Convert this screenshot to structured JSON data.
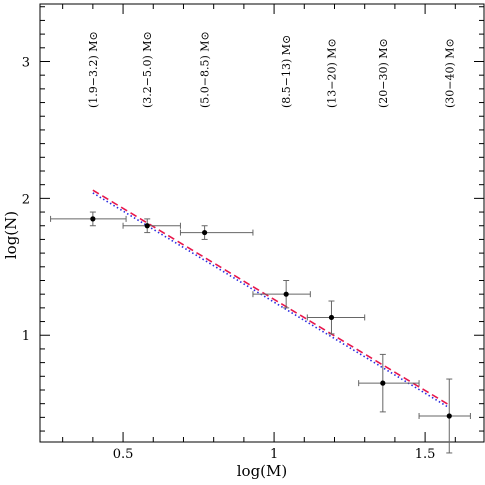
{
  "chart_data": {
    "type": "scatter",
    "xlabel": "log(M)",
    "ylabel": "log(N)",
    "xlim": [
      0.225,
      1.695
    ],
    "ylim": [
      0.22,
      3.42
    ],
    "x_ticks": [
      0.5,
      1,
      1.5
    ],
    "x_tick_labels": [
      "0.5",
      "1",
      "1.5"
    ],
    "y_ticks": [
      1,
      2,
      3
    ],
    "y_tick_labels": [
      "1",
      "2",
      "3"
    ],
    "points": [
      {
        "x": 0.4,
        "y": 1.85,
        "xerr": [
          0.14,
          0.11
        ],
        "yerr": 0.05,
        "bin_label": "(1.9−3.2) M⊙"
      },
      {
        "x": 0.58,
        "y": 1.8,
        "xerr": [
          0.08,
          0.11
        ],
        "yerr": 0.05,
        "bin_label": "(3.2−5.0) M⊙"
      },
      {
        "x": 0.77,
        "y": 1.75,
        "xerr": [
          0.08,
          0.16
        ],
        "yerr": 0.05,
        "bin_label": "(5.0−8.5) M⊙"
      },
      {
        "x": 1.04,
        "y": 1.3,
        "xerr": [
          0.11,
          0.08
        ],
        "yerr": 0.1,
        "bin_label": "(8.5−13) M⊙"
      },
      {
        "x": 1.19,
        "y": 1.13,
        "xerr": [
          0.08,
          0.11
        ],
        "yerr": 0.12,
        "bin_label": "(13−20) M⊙"
      },
      {
        "x": 1.36,
        "y": 0.65,
        "xerr": [
          0.08,
          0.12
        ],
        "yerr": 0.21,
        "bin_label": "(20−30) M⊙"
      },
      {
        "x": 1.58,
        "y": 0.41,
        "xerr": [
          0.1,
          0.07
        ],
        "yerr": 0.27,
        "bin_label": "(30−40) M⊙"
      }
    ],
    "fit_lines": [
      {
        "style": "dashed",
        "color": "#e8174b",
        "x": [
          0.4,
          1.58
        ],
        "y": [
          2.06,
          0.49
        ]
      },
      {
        "style": "dotted",
        "color": "#2a2ae0",
        "x": [
          0.4,
          1.58
        ],
        "y": [
          2.04,
          0.47
        ]
      }
    ],
    "point_color": "#000000",
    "errorbar_color": "#666666",
    "grid": false,
    "legend": "none"
  }
}
